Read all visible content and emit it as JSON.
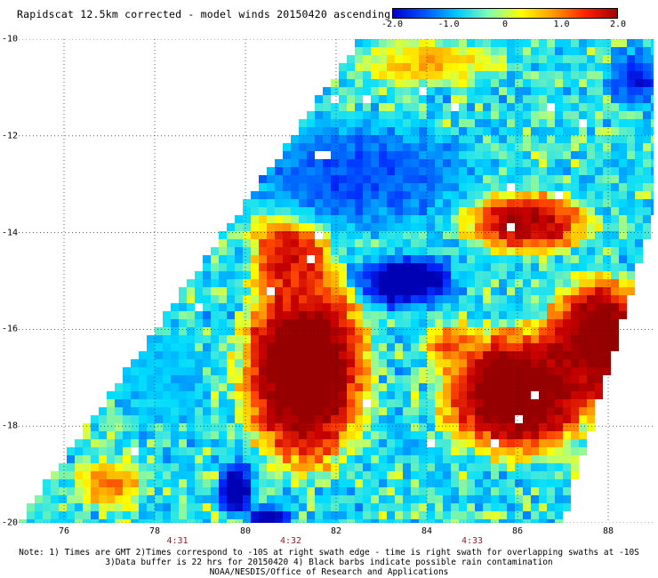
{
  "title": "Rapidscat 12.5km corrected - model winds 20150420 ascending",
  "colorbar": {
    "labels": [
      "-2.0",
      "-1.0",
      "0",
      "1.0",
      "2.0"
    ],
    "values": [
      -2.0,
      -1.0,
      0,
      1.0,
      2.0
    ],
    "colors": [
      "#0000cc",
      "#0055ff",
      "#00c8ff",
      "#7fffb0",
      "#ffff00",
      "#ff9900",
      "#ff2200",
      "#a00000"
    ]
  },
  "map": {
    "lat_labels": [
      "-10",
      "-12",
      "-14",
      "-16",
      "-18",
      "-20"
    ],
    "lat_values": [
      -10,
      -12,
      -14,
      -16,
      -18,
      -20
    ],
    "lon_labels": [
      "76",
      "78",
      "80",
      "82",
      "84",
      "86",
      "88"
    ],
    "lon_values": [
      76,
      78,
      80,
      82,
      84,
      86,
      88
    ],
    "time_labels": [
      "4:31",
      "4:32",
      "4:33"
    ],
    "time_lon": [
      78.5,
      81.0,
      85.0
    ],
    "lon_range": [
      75.0,
      89.0
    ],
    "lat_range": [
      -20.0,
      -10.0
    ]
  },
  "notes": [
    "Note: 1) Times are GMT 2)Times correspond to -10S at right swath edge - time is right swath for overlapping swaths at -10S",
    "3)Data buffer is 22 hrs for 20150420 4) Black barbs indicate possible rain contamination",
    "NOAA/NESDIS/Office of Research and Applications"
  ]
}
